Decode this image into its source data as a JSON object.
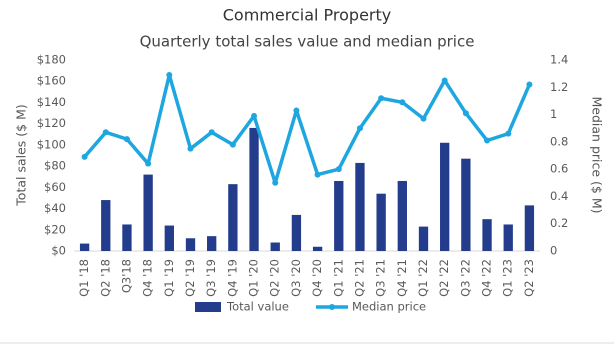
{
  "chart_data": {
    "type": "bar-line",
    "title": "Commercial Property",
    "subtitle": "Quarterly total sales value and median price",
    "y_label": "Total sales ($ M)",
    "y2_label": "Median price ($ M)",
    "categories": [
      "Q1 '18",
      "Q2 '18",
      "Q3'18",
      "Q4 '18",
      "Q1 '19",
      "Q2 '19",
      "Q3 '19",
      "Q4 '19",
      "Q1 '20",
      "Q2 '20",
      "Q3 '20",
      "Q4 '20",
      "Q1 '21",
      "Q2 '21",
      "Q3 '21",
      "Q4 '21",
      "Q1 '22",
      "Q2 '22",
      "Q3 '22",
      "Q4 '22",
      "Q1 '23",
      "Q2 '23"
    ],
    "series": [
      {
        "name": "Total value",
        "type": "bar",
        "color": "#233d8c",
        "values": [
          7,
          48,
          25,
          72,
          24,
          12,
          14,
          63,
          116,
          8,
          34,
          4,
          66,
          83,
          54,
          66,
          23,
          102,
          87,
          30,
          25,
          43
        ]
      },
      {
        "name": "Median price",
        "type": "line",
        "axis": "y2",
        "color": "#1ea6e0",
        "values": [
          0.69,
          0.87,
          0.82,
          0.64,
          1.29,
          0.75,
          0.87,
          0.78,
          0.99,
          0.5,
          1.03,
          0.56,
          0.6,
          0.9,
          1.12,
          1.09,
          0.97,
          1.25,
          1.01,
          0.81,
          0.86,
          1.22
        ]
      }
    ],
    "ylim": [
      0,
      180
    ],
    "yticks": [
      {
        "value": 0,
        "label": "$0"
      },
      {
        "value": 20,
        "label": "$20"
      },
      {
        "value": 40,
        "label": "$40"
      },
      {
        "value": 60,
        "label": "$60"
      },
      {
        "value": 80,
        "label": "$80"
      },
      {
        "value": 100,
        "label": "$100"
      },
      {
        "value": 120,
        "label": "$120"
      },
      {
        "value": 140,
        "label": "$140"
      },
      {
        "value": 160,
        "label": "$160"
      },
      {
        "value": 180,
        "label": "$180"
      }
    ],
    "y2lim": [
      0,
      1.4
    ],
    "y2ticks": [
      0,
      0.2,
      0.4,
      0.6,
      0.8,
      1,
      1.2,
      1.4
    ],
    "legend": "bottom"
  }
}
